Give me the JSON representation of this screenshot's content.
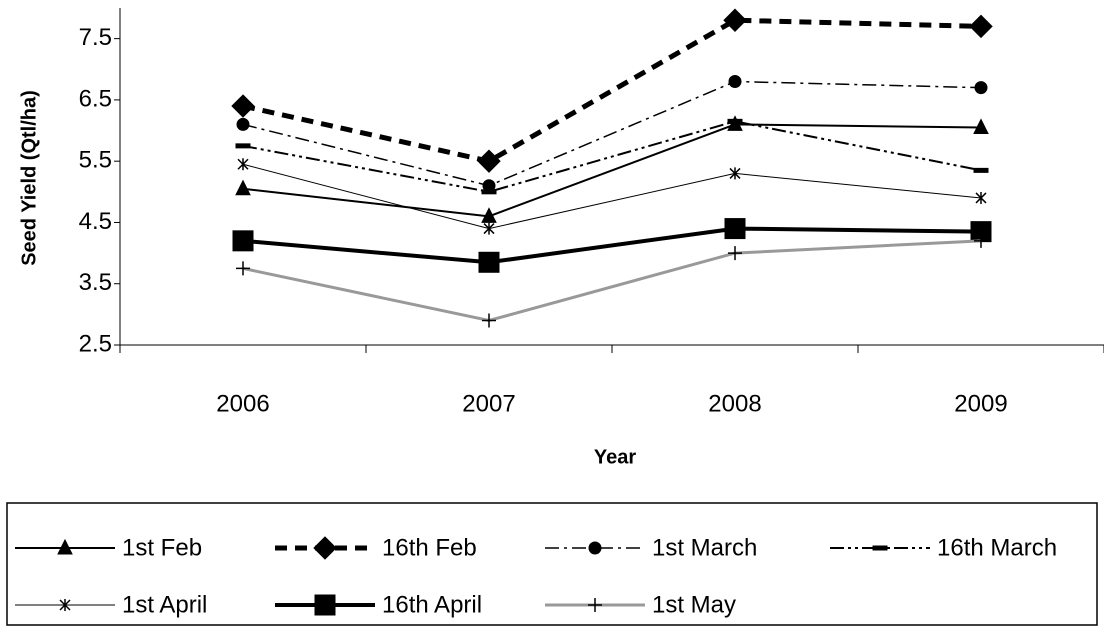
{
  "chart_data": {
    "type": "line",
    "x_label": "Year",
    "y_label": "Seed Yield (Qtl/ha)",
    "categories": [
      "2006",
      "2007",
      "2008",
      "2009"
    ],
    "series": [
      {
        "name": "1st Feb",
        "color": "#000000",
        "values": [
          5.05,
          4.6,
          6.1,
          6.05
        ]
      },
      {
        "name": "16th Feb",
        "color": "#000000",
        "values": [
          6.4,
          5.5,
          7.8,
          7.7
        ]
      },
      {
        "name": "1st March",
        "color": "#000000",
        "values": [
          6.1,
          5.1,
          6.8,
          6.7
        ]
      },
      {
        "name": "16th March",
        "color": "#000000",
        "values": [
          5.75,
          5.0,
          6.15,
          5.35
        ]
      },
      {
        "name": "1st April",
        "color": "#000000",
        "values": [
          5.45,
          4.4,
          5.3,
          4.9
        ]
      },
      {
        "name": "16th April",
        "color": "#000000",
        "values": [
          4.2,
          3.85,
          4.4,
          4.35
        ]
      },
      {
        "name": "1st May",
        "color": "#999999",
        "values": [
          3.75,
          2.9,
          4.0,
          4.2
        ]
      }
    ],
    "ylim": [
      2.5,
      8
    ],
    "yticks": [
      2.5,
      3.5,
      4.5,
      5.5,
      6.5,
      7.5
    ],
    "grid": false
  }
}
